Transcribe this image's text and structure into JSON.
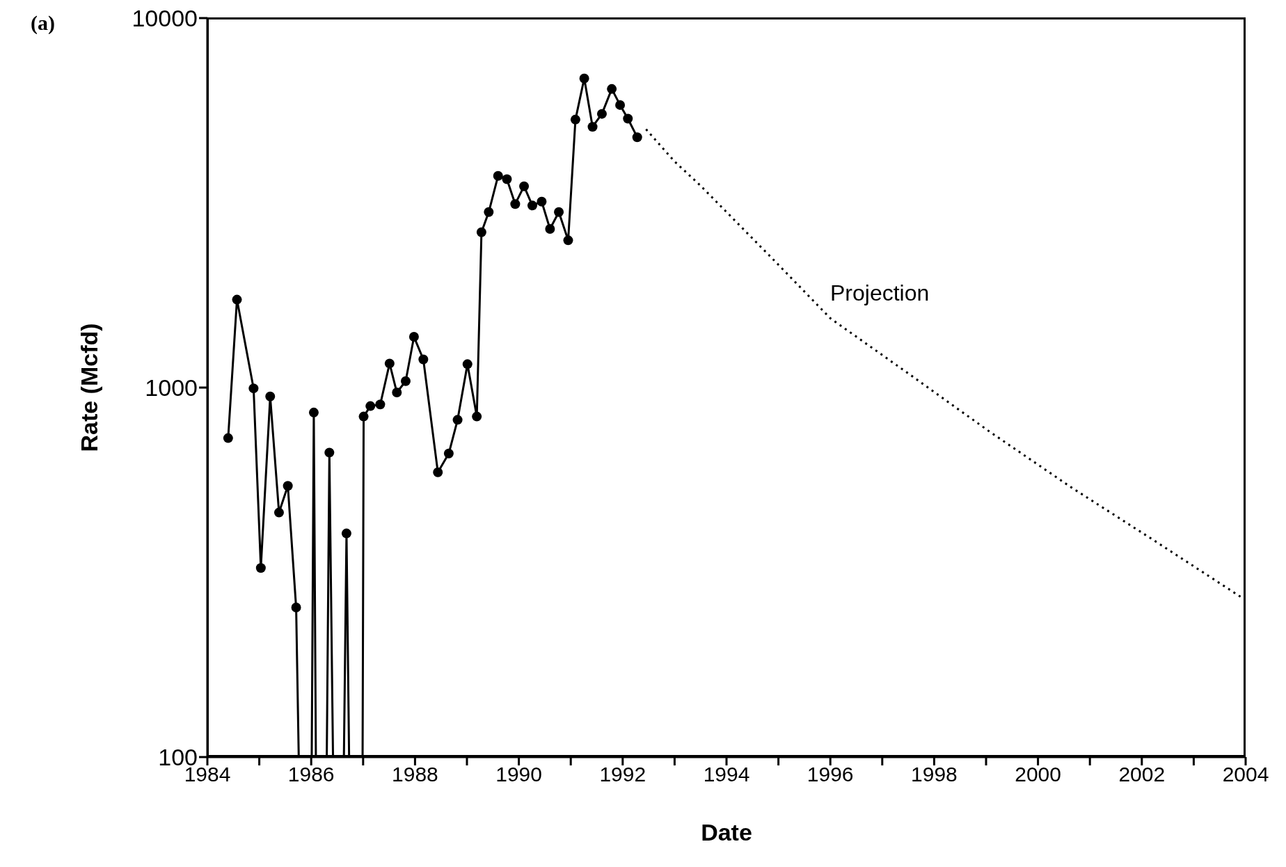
{
  "chart_data": {
    "type": "line",
    "xlabel": "Date",
    "ylabel": "Rate (Mcfd)",
    "log": "y",
    "xlim": [
      1984,
      2004
    ],
    "ylim": [
      100,
      10000
    ],
    "xticks": [
      1984,
      {
        "value": 1985,
        "label": null
      },
      1986,
      {
        "value": 1987,
        "label": null
      },
      1988,
      {
        "value": 1989,
        "label": null
      },
      1990,
      {
        "value": 1991,
        "label": null
      },
      1992,
      {
        "value": 1993,
        "label": null
      },
      1994,
      {
        "value": 1995,
        "label": null
      },
      1996,
      {
        "value": 1997,
        "label": null
      },
      1998,
      {
        "value": 1999,
        "label": null
      },
      2000,
      {
        "value": 2001,
        "label": null
      },
      2002,
      {
        "value": 2003,
        "label": null
      },
      2004
    ],
    "yticks": [
      100,
      1000,
      10000
    ],
    "annotations": [
      "(a)",
      "Projection"
    ],
    "series": [
      {
        "color": "#000000",
        "marker": "circle",
        "line_style": "solid",
        "x": [
          1984.4,
          1984.57,
          1984.89,
          1985.03,
          1985.21,
          1985.38,
          1985.55,
          1985.71,
          1985.76,
          1986.01,
          1986.05,
          1986.09,
          1986.3,
          1986.35,
          1986.42,
          1986.63,
          1986.68,
          1986.73,
          1986.99,
          1987.01,
          1987.14,
          1987.33,
          1987.51,
          1987.65,
          1987.82,
          1987.98,
          1988.16,
          1988.44,
          1988.65,
          1988.82,
          1989.01,
          1989.19,
          1989.28,
          1989.42,
          1989.6,
          1989.77,
          1989.93,
          1990.1,
          1990.26,
          1990.44,
          1990.6,
          1990.77,
          1990.95,
          1991.09,
          1991.26,
          1991.42,
          1991.6,
          1991.79,
          1991.95,
          1992.1,
          1992.28
        ],
        "values": [
          730,
          1730,
          995,
          325,
          946,
          459,
          542,
          254,
          100,
          100,
          856,
          100,
          100,
          667,
          100,
          100,
          403,
          100,
          100,
          835,
          891,
          900,
          1162,
          970,
          1041,
          1372,
          1192,
          590,
          663,
          818,
          1157,
          835,
          2633,
          2985,
          3741,
          3665,
          3139,
          3506,
          3110,
          3187,
          2687,
          2985,
          2504,
          5313,
          6867,
          5080,
          5505,
          6430,
          5818,
          5345,
          4760
        ]
      },
      {
        "color": "#000000",
        "marker": "none",
        "line_style": "dotted",
        "x": [
          1992.45,
          1993.0,
          1993.5,
          1994.29,
          1995.0,
          1996.0,
          1997.47,
          1999.05,
          2000.64,
          2002.22,
          2004
        ],
        "values": [
          5000,
          4090,
          3520,
          2715,
          2150,
          1540,
          1100,
          763,
          537,
          387,
          266
        ]
      }
    ]
  }
}
